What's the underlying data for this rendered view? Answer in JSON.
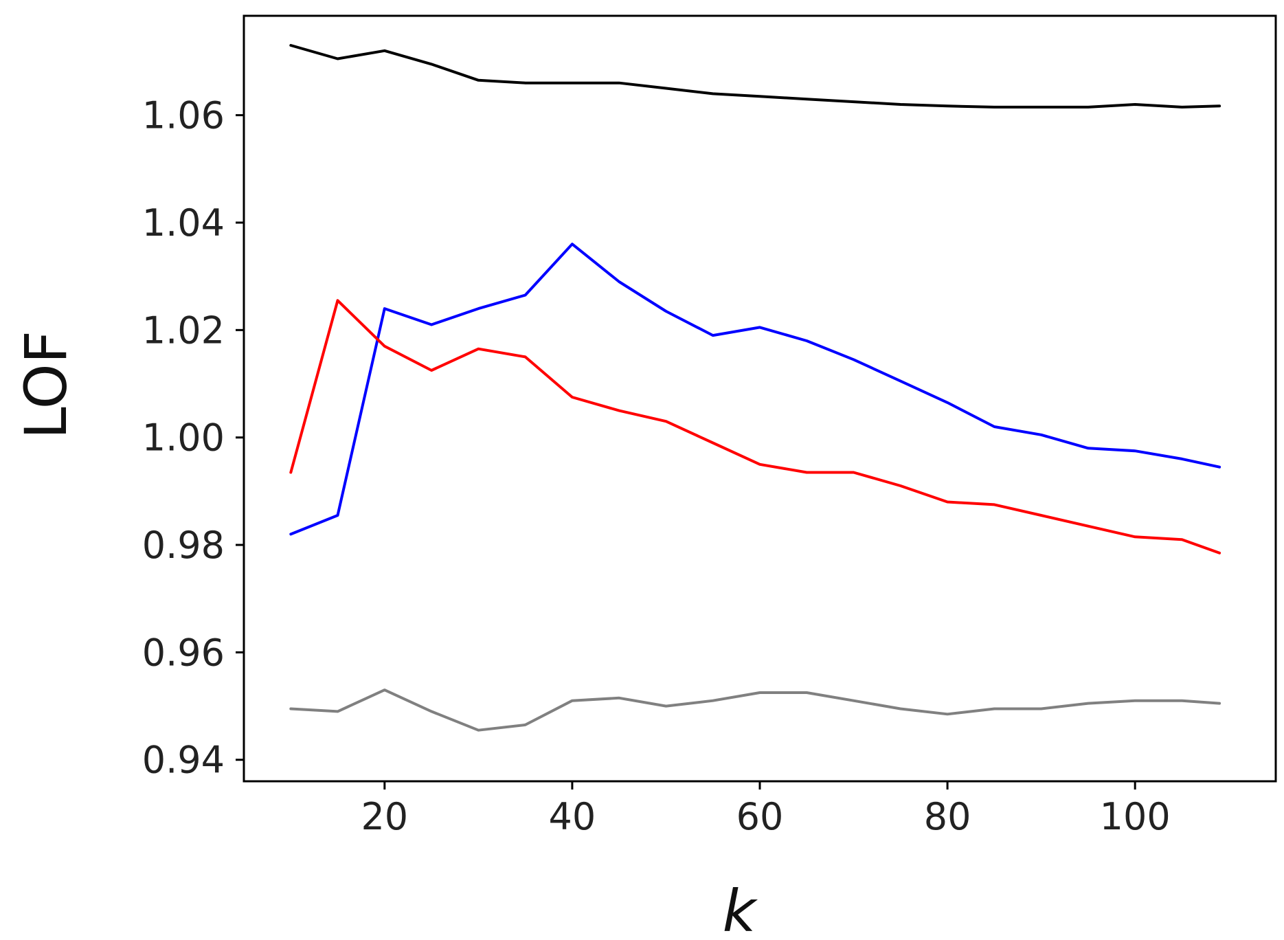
{
  "chart_data": {
    "type": "line",
    "title": "",
    "xlabel": "k",
    "ylabel": "LOF",
    "xlim": [
      5,
      115
    ],
    "ylim": [
      0.936,
      1.0785
    ],
    "xticks": [
      20,
      40,
      60,
      80,
      100
    ],
    "xtick_labels": [
      "20",
      "40",
      "60",
      "80",
      "100"
    ],
    "yticks": [
      0.94,
      0.96,
      0.98,
      1.0,
      1.02,
      1.04,
      1.06
    ],
    "ytick_labels": [
      "0.94",
      "0.96",
      "0.98",
      "1.00",
      "1.02",
      "1.04",
      "1.06"
    ],
    "grid": false,
    "x": [
      10,
      15,
      20,
      25,
      30,
      35,
      40,
      45,
      50,
      55,
      60,
      65,
      70,
      75,
      80,
      85,
      90,
      95,
      100,
      105,
      109
    ],
    "series": [
      {
        "color": "#000000",
        "values": [
          1.073,
          1.0705,
          1.072,
          1.0695,
          1.0665,
          1.066,
          1.066,
          1.066,
          1.065,
          1.064,
          1.0635,
          1.063,
          1.0625,
          1.062,
          1.0617,
          1.0615,
          1.0615,
          1.0615,
          1.062,
          1.0615,
          1.0617
        ]
      },
      {
        "color": "#0000ff",
        "values": [
          0.982,
          0.9855,
          1.024,
          1.021,
          1.024,
          1.0265,
          1.036,
          1.029,
          1.0235,
          1.019,
          1.0205,
          1.018,
          1.0145,
          1.0105,
          1.0065,
          1.002,
          1.0005,
          0.998,
          0.9975,
          0.996,
          0.9945
        ]
      },
      {
        "color": "#ff0000",
        "values": [
          0.9935,
          1.0255,
          1.017,
          1.0125,
          1.0165,
          1.015,
          1.0075,
          1.005,
          1.003,
          0.999,
          0.995,
          0.9935,
          0.9935,
          0.991,
          0.988,
          0.9875,
          0.9855,
          0.9835,
          0.9815,
          0.981,
          0.9785
        ]
      },
      {
        "color": "#808080",
        "values": [
          0.9495,
          0.949,
          0.953,
          0.949,
          0.9455,
          0.9465,
          0.951,
          0.9515,
          0.95,
          0.951,
          0.9525,
          0.9525,
          0.951,
          0.9495,
          0.9485,
          0.9495,
          0.9495,
          0.9505,
          0.951,
          0.951,
          0.9505
        ]
      }
    ]
  }
}
